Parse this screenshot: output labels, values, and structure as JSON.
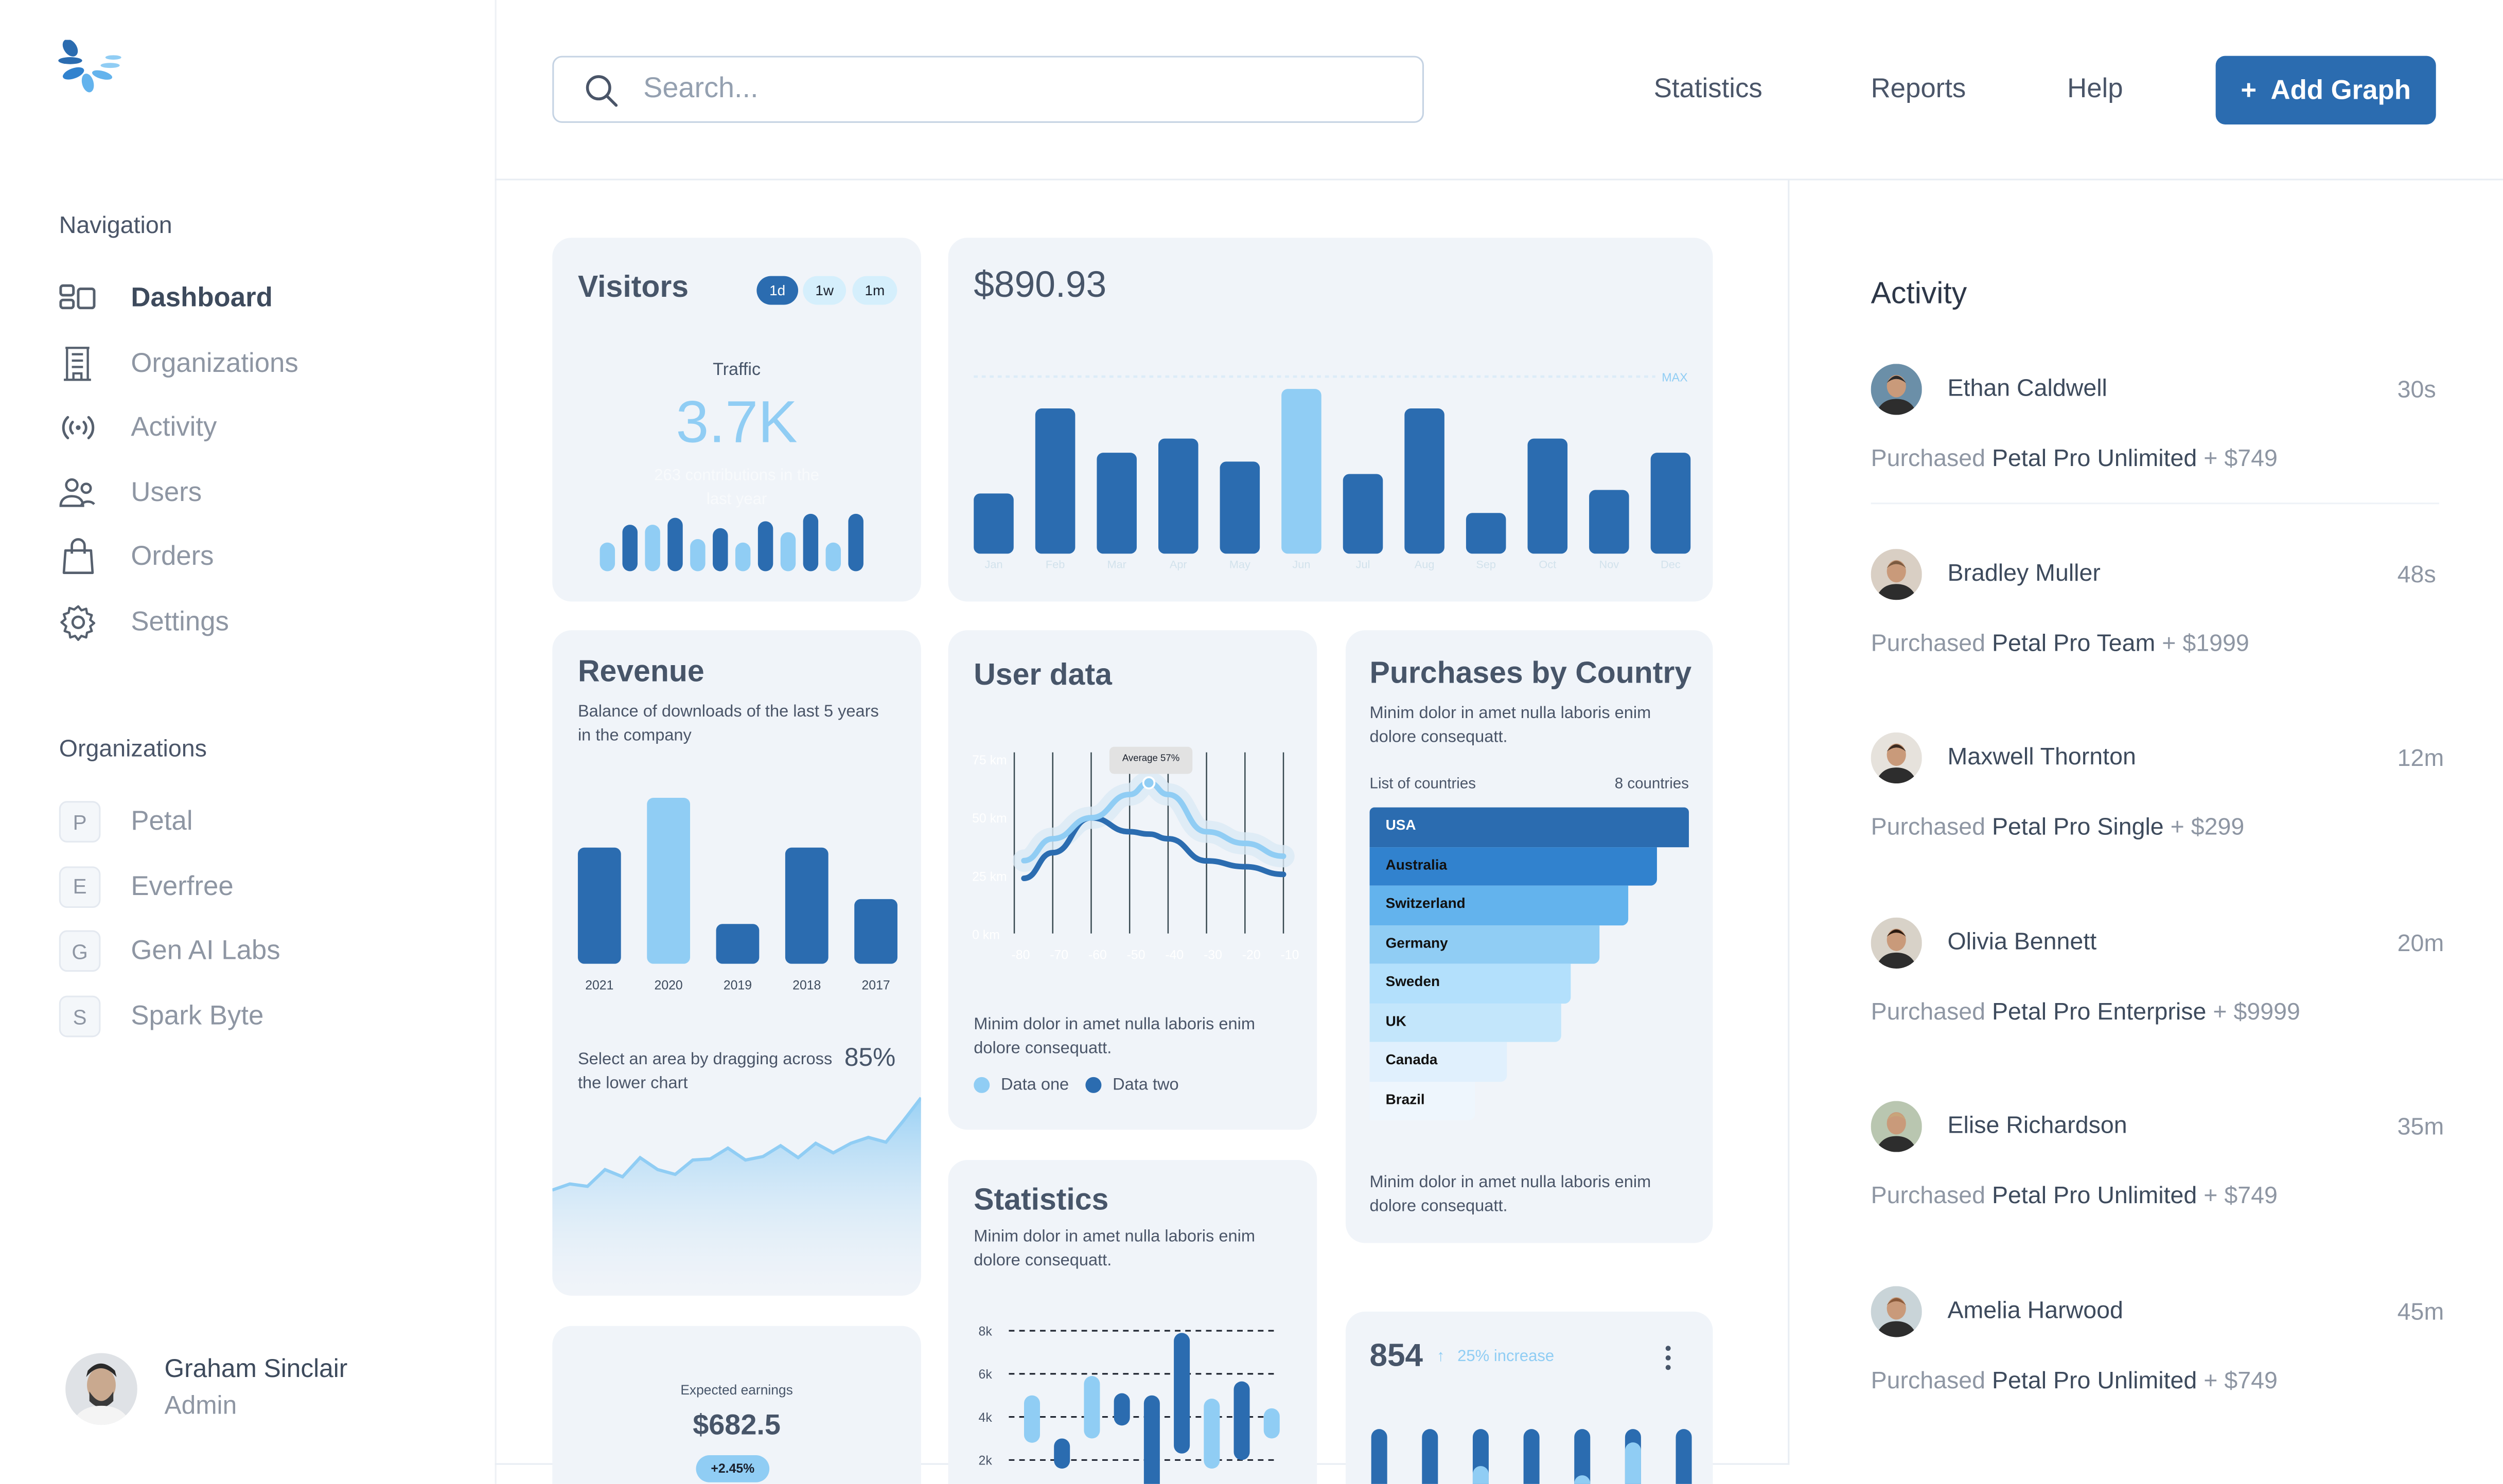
{
  "sidebar": {
    "navigation_heading": "Navigation",
    "nav_items": [
      {
        "label": "Dashboard",
        "icon": "dashboard-icon",
        "active": true
      },
      {
        "label": "Organizations",
        "icon": "building-icon"
      },
      {
        "label": "Activity",
        "icon": "broadcast-icon"
      },
      {
        "label": "Users",
        "icon": "users-icon"
      },
      {
        "label": "Orders",
        "icon": "shopping-bag-icon"
      },
      {
        "label": "Settings",
        "icon": "gear-icon"
      }
    ],
    "organizations_heading": "Organizations",
    "organizations": [
      {
        "initial": "P",
        "label": "Petal"
      },
      {
        "initial": "E",
        "label": "Everfree"
      },
      {
        "initial": "G",
        "label": "Gen AI Labs"
      },
      {
        "initial": "S",
        "label": "Spark Byte"
      }
    ],
    "user": {
      "name": "Graham Sinclair",
      "role": "Admin"
    }
  },
  "header": {
    "search_placeholder": "Search...",
    "links": [
      "Statistics",
      "Reports",
      "Help"
    ],
    "add_button": "+  Add Graph"
  },
  "colors": {
    "primary": "#2b6cb0",
    "light": "#90cdf4",
    "card": "#f0f4f9"
  },
  "visitors": {
    "title": "Visitors",
    "ranges": [
      "1d",
      "1w",
      "1m"
    ],
    "selected_range": "1d",
    "traffic_label": "Traffic",
    "traffic_value": "3.7K",
    "contributions_text": "263 contributions in the last year"
  },
  "monthly": {
    "title": "$890.93",
    "max_label": "MAX"
  },
  "revenue": {
    "title": "Revenue",
    "subtitle": "Balance of downloads of the last 5 years in the company",
    "drag_hint": "Select an area by dragging across the lower chart",
    "percent": "85%"
  },
  "earnings": {
    "label": "Expected earnings",
    "value": "$682.5",
    "change": "+2.45%"
  },
  "user_data": {
    "title": "User data",
    "tooltip": "Average 57%",
    "description": "Minim dolor in amet nulla laboris enim dolore consequatt.",
    "legend": [
      "Data one",
      "Data two"
    ]
  },
  "statistics": {
    "title": "Statistics",
    "description": "Minim dolor in amet nulla laboris enim dolore consequatt."
  },
  "purchases": {
    "title": "Purchases by Country",
    "description": "Minim dolor in amet nulla laboris enim dolore consequatt.",
    "list_label": "List of countries",
    "count_label": "8 countries",
    "footer": "Minim dolor in amet nulla laboris enim dolore consequatt."
  },
  "increase": {
    "value": "854",
    "change": "25% increase",
    "arrow": "↑"
  },
  "activity": {
    "title": "Activity",
    "items": [
      {
        "name": "Ethan Caldwell",
        "time": "30s",
        "action": "Purchased",
        "product": "Petal Pro Unlimited",
        "amount": "+ $749"
      },
      {
        "name": "Bradley Muller",
        "time": "48s",
        "action": "Purchased",
        "product": "Petal Pro Team",
        "amount": "+ $1999"
      },
      {
        "name": "Maxwell Thornton",
        "time": "12m",
        "action": "Purchased",
        "product": "Petal Pro Single",
        "amount": "+ $299"
      },
      {
        "name": "Olivia Bennett",
        "time": "20m",
        "action": "Purchased",
        "product": "Petal Pro Enterprise",
        "amount": "+ $9999"
      },
      {
        "name": "Elise Richardson",
        "time": "35m",
        "action": "Purchased",
        "product": "Petal Pro Unlimited",
        "amount": "+ $749"
      },
      {
        "name": "Amelia Harwood",
        "time": "45m",
        "action": "Purchased",
        "product": "Petal Pro Unlimited",
        "amount": "+ $749"
      }
    ]
  },
  "chart_data": [
    {
      "id": "visitors-traffic",
      "type": "bar",
      "values": [
        50,
        81,
        81,
        93,
        56,
        75,
        50,
        87,
        68,
        100,
        50,
        100
      ],
      "tones": [
        "light",
        "dark",
        "light",
        "dark",
        "light",
        "dark",
        "light",
        "dark",
        "light",
        "dark",
        "light",
        "dark"
      ]
    },
    {
      "id": "monthly",
      "type": "bar",
      "categories": [
        "Jan",
        "Feb",
        "Mar",
        "Apr",
        "May",
        "Jun",
        "Jul",
        "Aug",
        "Sep",
        "Oct",
        "Nov",
        "Dec"
      ],
      "values": [
        34,
        82,
        57,
        65,
        52,
        93,
        45,
        82,
        23,
        65,
        36,
        57
      ],
      "highlight": "Jun",
      "max_line": 100,
      "ylim": [
        0,
        100
      ]
    },
    {
      "id": "revenue",
      "type": "bar",
      "categories": [
        "2021",
        "2020",
        "2019",
        "2018",
        "2017"
      ],
      "values": [
        70,
        100,
        24,
        70,
        39
      ],
      "highlight": "2020",
      "ylim": [
        0,
        100
      ]
    },
    {
      "id": "revenue-trend",
      "type": "area",
      "values": [
        19,
        24,
        22,
        36,
        30,
        46,
        36,
        32,
        44,
        45,
        54,
        44,
        47,
        56,
        46,
        58,
        50,
        58,
        63,
        59,
        77,
        96
      ]
    },
    {
      "id": "user-data",
      "type": "line",
      "x": [
        -77.5,
        -70,
        -60,
        -50,
        -45,
        -40,
        -30,
        -20,
        -10
      ],
      "xticks": [
        "-80",
        "-70",
        "-60",
        "-50",
        "-40",
        "-30",
        "-20",
        "-10"
      ],
      "yticks": [
        "0 km",
        "25 km",
        "50 km",
        "75 km"
      ],
      "ylim": [
        0,
        75
      ],
      "series": [
        {
          "name": "Data one",
          "color": "#90cdf4",
          "values": [
            31.6,
            41,
            50,
            60,
            65,
            60,
            44,
            39,
            33.5
          ]
        },
        {
          "name": "Data two",
          "color": "#2b6cb0",
          "values": [
            24,
            35,
            50,
            44,
            43,
            41,
            31.5,
            29,
            25.7
          ]
        }
      ]
    },
    {
      "id": "statistics",
      "type": "bar",
      "subtype": "floating-range",
      "yticks": [
        "8k",
        "6k",
        "4k",
        "2k"
      ],
      "ylim": [
        0,
        8
      ],
      "ranges": [
        [
          2.8,
          5.0
        ],
        [
          1.6,
          3.0
        ],
        [
          3.0,
          5.9
        ],
        [
          3.6,
          5.1
        ],
        [
          0.5,
          5.0
        ],
        [
          2.3,
          7.9
        ],
        [
          1.6,
          4.85
        ],
        [
          2.0,
          5.65
        ],
        [
          3.0,
          4.4
        ]
      ],
      "tones": [
        "light",
        "dark",
        "light",
        "dark",
        "dark",
        "dark",
        "light",
        "dark",
        "light"
      ]
    },
    {
      "id": "purchases-by-country",
      "type": "bar",
      "orientation": "horizontal",
      "categories": [
        "USA",
        "Australia",
        "Switzerland",
        "Germany",
        "Sweden",
        "UK",
        "Canada",
        "Brazil"
      ],
      "values": [
        100,
        90,
        81,
        72,
        63,
        60,
        43,
        33
      ],
      "colors": [
        "#2b6cb0",
        "#3182ce",
        "#63b3ed",
        "#90cdf4",
        "#b3e0fc",
        "#c3e6fb",
        "#e0f0fd",
        "#eef6fd"
      ]
    },
    {
      "id": "increase-bars",
      "type": "bar",
      "series": [
        {
          "values": [
            100,
            100,
            100,
            100,
            100,
            100,
            100
          ]
        },
        {
          "values": [
            0,
            0,
            64,
            0,
            55,
            87,
            0
          ]
        }
      ]
    }
  ]
}
